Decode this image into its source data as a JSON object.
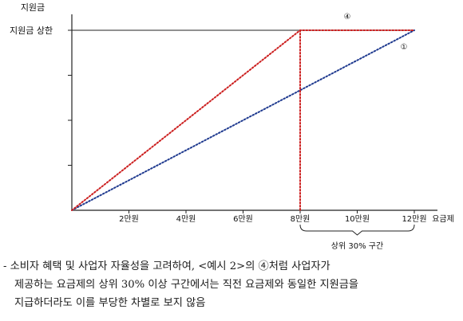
{
  "chart_data": {
    "type": "line",
    "title": "",
    "ylabel": "지원금",
    "xlabel": "요금제",
    "y_cap_label": "지원금 상한",
    "x": [
      0,
      2,
      4,
      6,
      8,
      10,
      12
    ],
    "x_tick_labels": [
      "2만원",
      "4만원",
      "6만원",
      "8만원",
      "10만원",
      "12만원"
    ],
    "x_tick_values": [
      2,
      4,
      6,
      8,
      10,
      12
    ],
    "xlim": [
      0,
      12
    ],
    "ylim": [
      0,
      1
    ],
    "y_unit_note": "fraction of 지원금 상한 (no y tick values printed)",
    "series": [
      {
        "name": "①",
        "color": "#1f3a8f",
        "points": [
          [
            0,
            0
          ],
          [
            12,
            1
          ]
        ]
      },
      {
        "name": "④",
        "color": "#cc1f1f",
        "points": [
          [
            0,
            0
          ],
          [
            8,
            1
          ],
          [
            12,
            1
          ]
        ]
      }
    ],
    "dropline": {
      "x": 8,
      "color": "#cc1f1f"
    },
    "cap_line_color": "#222222",
    "bracket": {
      "x_start": 8,
      "x_end": 12,
      "label": "상위 30% 구간"
    },
    "grid": false,
    "legend": "none"
  },
  "note": {
    "line1": "- 소비자 혜택 및 사업자 자율성을 고려하여, <예시 2>의 ④처럼 사업자가",
    "line2": "제공하는 요금제의 상위 30% 이상 구간에서는 직전 요금제와 동일한 지원금을",
    "line3": "지급하더라도 이를 부당한 차별로 보지 않음"
  }
}
